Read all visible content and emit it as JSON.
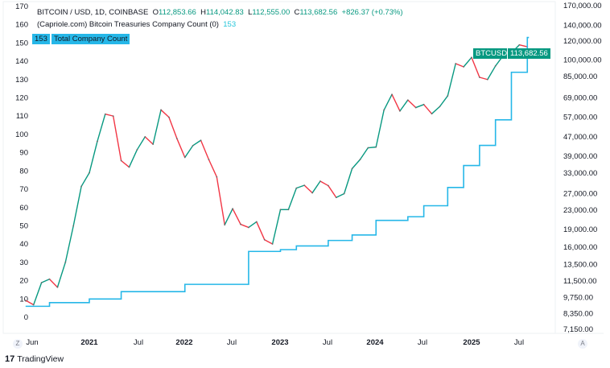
{
  "header": {
    "symbol": "BITCOIN / USD, 1D, COINBASE",
    "open_label": "O",
    "open": "112,853.66",
    "high_label": "H",
    "high": "114,042.83",
    "low_label": "L",
    "low": "112,555.00",
    "close_label": "C",
    "close": "113,682.56",
    "change": "+826.37 (+0.73%)",
    "indicator": "(Capriole.com) Bitcoin Treasuries Company Count (0)",
    "indicator_value": "153"
  },
  "tags": {
    "count_value": "153",
    "count_label": "Total Company Count",
    "price_symbol": "BTCUSD",
    "price_value": "113,682.56"
  },
  "colors": {
    "count": "#26b7e8",
    "up": "#089981",
    "down": "#f23645",
    "tag_price": "#089981"
  },
  "buttons": {
    "zoom": "Z",
    "auto": "A"
  },
  "brand": "TradingView",
  "chart_data": {
    "type": "line",
    "x_tick_labels": [
      "Jun",
      "2021",
      "Jul",
      "2022",
      "Jul",
      "2023",
      "Jul",
      "2024",
      "Jul",
      "2025",
      "Jul"
    ],
    "left_axis": {
      "ticks": [
        0,
        10,
        20,
        30,
        40,
        50,
        60,
        70,
        80,
        90,
        100,
        110,
        120,
        130,
        140,
        150,
        160,
        170
      ],
      "ylim": [
        0,
        170
      ]
    },
    "right_axis": {
      "scale": "log",
      "ticks": [
        "170,000.00",
        "140,000.00",
        "120,000.00",
        "100,000.00",
        "85,000.00",
        "69,000.00",
        "57,000.00",
        "47,000.00",
        "39,000.00",
        "33,000.00",
        "27,000.00",
        "23,000.00",
        "19,000.00",
        "16,000.00",
        "13,500.00",
        "11,500.00",
        "9,750.00",
        "8,350.00",
        "7,150.00"
      ],
      "ylim": [
        7150,
        170000
      ]
    },
    "series": [
      {
        "name": "BTCUSD",
        "axis": "right",
        "x": [
          "2020-05",
          "2020-06",
          "2020-07",
          "2020-08",
          "2020-09",
          "2020-10",
          "2020-11",
          "2020-12",
          "2021-01",
          "2021-02",
          "2021-03",
          "2021-04",
          "2021-05",
          "2021-06",
          "2021-07",
          "2021-08",
          "2021-09",
          "2021-10",
          "2021-11",
          "2021-12",
          "2022-01",
          "2022-02",
          "2022-03",
          "2022-04",
          "2022-05",
          "2022-06",
          "2022-07",
          "2022-08",
          "2022-09",
          "2022-10",
          "2022-11",
          "2022-12",
          "2023-01",
          "2023-02",
          "2023-03",
          "2023-04",
          "2023-05",
          "2023-06",
          "2023-07",
          "2023-08",
          "2023-09",
          "2023-10",
          "2023-11",
          "2023-12",
          "2024-01",
          "2024-02",
          "2024-03",
          "2024-04",
          "2024-05",
          "2024-06",
          "2024-07",
          "2024-08",
          "2024-09",
          "2024-10",
          "2024-11",
          "2024-12",
          "2025-01",
          "2025-02",
          "2025-03",
          "2025-04",
          "2025-05",
          "2025-06",
          "2025-07",
          "2025-08"
        ],
        "values": [
          9500,
          9100,
          11300,
          11700,
          10800,
          13800,
          19700,
          29000,
          33100,
          45000,
          58800,
          57700,
          37300,
          35000,
          41500,
          47100,
          43800,
          61300,
          57000,
          46300,
          38500,
          43200,
          45500,
          37700,
          31800,
          19900,
          23300,
          20000,
          19400,
          20500,
          17200,
          16500,
          23100,
          23100,
          28500,
          29300,
          27200,
          30500,
          29200,
          26000,
          27000,
          34500,
          37700,
          42300,
          42600,
          61200,
          71300,
          60600,
          67500,
          62700,
          64600,
          59000,
          63300,
          70300,
          96400,
          93400,
          102400,
          84300,
          82500,
          94200,
          104600,
          107100,
          115800,
          113682.56
        ]
      },
      {
        "name": "Total Company Count",
        "axis": "left",
        "x": [
          "2020-05",
          "2020-08",
          "2021-01",
          "2021-05",
          "2022-01",
          "2022-09",
          "2023-01",
          "2023-03",
          "2023-07",
          "2023-10",
          "2024-01",
          "2024-05",
          "2024-07",
          "2024-10",
          "2024-12",
          "2025-02",
          "2025-04",
          "2025-06",
          "2025-08"
        ],
        "values": [
          6,
          8,
          10,
          14,
          18,
          36,
          37,
          39,
          42,
          45,
          53,
          55,
          61,
          71,
          83,
          94,
          108,
          134,
          153
        ]
      }
    ]
  }
}
